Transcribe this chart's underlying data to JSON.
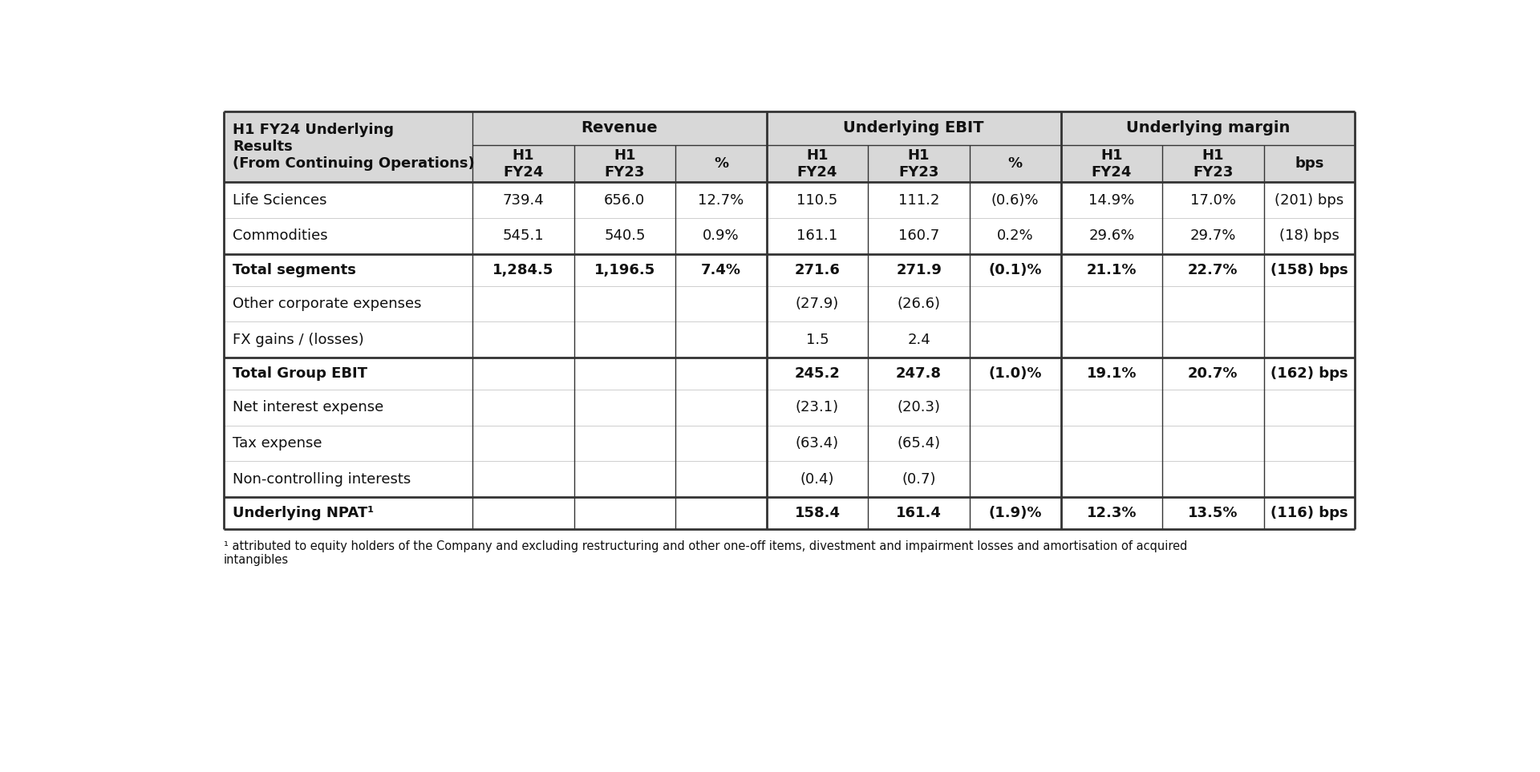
{
  "title_line1": "H1 FY24 Underlying",
  "title_line2": "Results",
  "title_line3": "(From Continuing Operations)",
  "group_headers": [
    "Revenue",
    "Underlying EBIT",
    "Underlying margin"
  ],
  "sub_headers": [
    "H1\nFY24",
    "H1\nFY23",
    "%",
    "H1\nFY24",
    "H1\nFY23",
    "%",
    "H1\nFY24",
    "H1\nFY23",
    "bps"
  ],
  "rows": [
    {
      "label": "Life Sciences",
      "bold": false,
      "values": [
        "739.4",
        "656.0",
        "12.7%",
        "110.5",
        "111.2",
        "(0.6)%",
        "14.9%",
        "17.0%",
        "(201) bps"
      ],
      "separator_before": false
    },
    {
      "label": "Commodities",
      "bold": false,
      "values": [
        "545.1",
        "540.5",
        "0.9%",
        "161.1",
        "160.7",
        "0.2%",
        "29.6%",
        "29.7%",
        "(18) bps"
      ],
      "separator_before": false
    },
    {
      "label": "Total segments",
      "bold": true,
      "values": [
        "1,284.5",
        "1,196.5",
        "7.4%",
        "271.6",
        "271.9",
        "(0.1)%",
        "21.1%",
        "22.7%",
        "(158) bps"
      ],
      "separator_before": true
    },
    {
      "label": "Other corporate expenses",
      "bold": false,
      "values": [
        "",
        "",
        "",
        "(27.9)",
        "(26.6)",
        "",
        "",
        "",
        ""
      ],
      "separator_before": false
    },
    {
      "label": "FX gains / (losses)",
      "bold": false,
      "values": [
        "",
        "",
        "",
        "1.5",
        "2.4",
        "",
        "",
        "",
        ""
      ],
      "separator_before": false
    },
    {
      "label": "Total Group EBIT",
      "bold": true,
      "values": [
        "",
        "",
        "",
        "245.2",
        "247.8",
        "(1.0)%",
        "19.1%",
        "20.7%",
        "(162) bps"
      ],
      "separator_before": true
    },
    {
      "label": "Net interest expense",
      "bold": false,
      "values": [
        "",
        "",
        "",
        "(23.1)",
        "(20.3)",
        "",
        "",
        "",
        ""
      ],
      "separator_before": false
    },
    {
      "label": "Tax expense",
      "bold": false,
      "values": [
        "",
        "",
        "",
        "(63.4)",
        "(65.4)",
        "",
        "",
        "",
        ""
      ],
      "separator_before": false
    },
    {
      "label": "Non-controlling interests",
      "bold": false,
      "values": [
        "",
        "",
        "",
        "(0.4)",
        "(0.7)",
        "",
        "",
        "",
        ""
      ],
      "separator_before": false
    },
    {
      "label": "Underlying NPAT¹",
      "bold": true,
      "values": [
        "",
        "",
        "",
        "158.4",
        "161.4",
        "(1.9)%",
        "12.3%",
        "13.5%",
        "(116) bps"
      ],
      "separator_before": true
    }
  ],
  "footnote": "¹ attributed to equity holders of the Company and excluding restructuring and other one-off items, divestment and impairment losses and amortisation of acquired\nintangibles",
  "header_bg": "#d8d8d8",
  "border_color": "#333333",
  "thick_line": 2.0,
  "thin_line": 1.0,
  "text_color": "#111111",
  "bg_color": "#ffffff",
  "fontsize_header": 14,
  "fontsize_data": 13,
  "fontsize_footnote": 10.5
}
